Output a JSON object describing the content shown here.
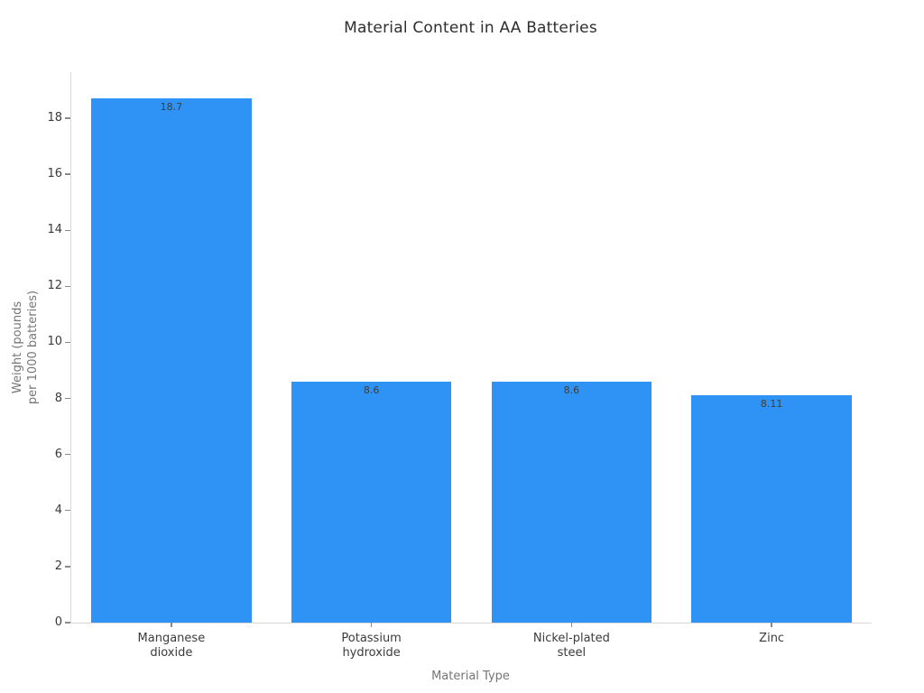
{
  "figure": {
    "background": "#ffffff"
  },
  "chart_data": {
    "type": "bar",
    "title": "Material Content in AA Batteries",
    "xlabel": "Material Type",
    "ylabel": "Weight (pounds\nper 1000 batteries)",
    "categories": [
      "Manganese\ndioxide",
      "Potassium\nhydroxide",
      "Nickel-plated\nsteel",
      "Zinc"
    ],
    "values": [
      18.7,
      8.6,
      8.6,
      8.11
    ],
    "bar_labels": [
      "18.7",
      "8.6",
      "8.6",
      "8.11"
    ],
    "ylim": [
      0,
      19.64
    ],
    "yticks": [
      0,
      2,
      4,
      6,
      8,
      10,
      12,
      14,
      16,
      18
    ],
    "bar_color": "#2F93F5",
    "grid": false,
    "legend": null
  },
  "style": {
    "title_color": "#2e2e2e",
    "tick_label_color": "#3b3b3b",
    "axis_label_color": "#757575",
    "axis_line_color": "#d9d9d9",
    "tick_mark_color": "#8a8a8a",
    "value_label_color": "#3d3d3d"
  }
}
